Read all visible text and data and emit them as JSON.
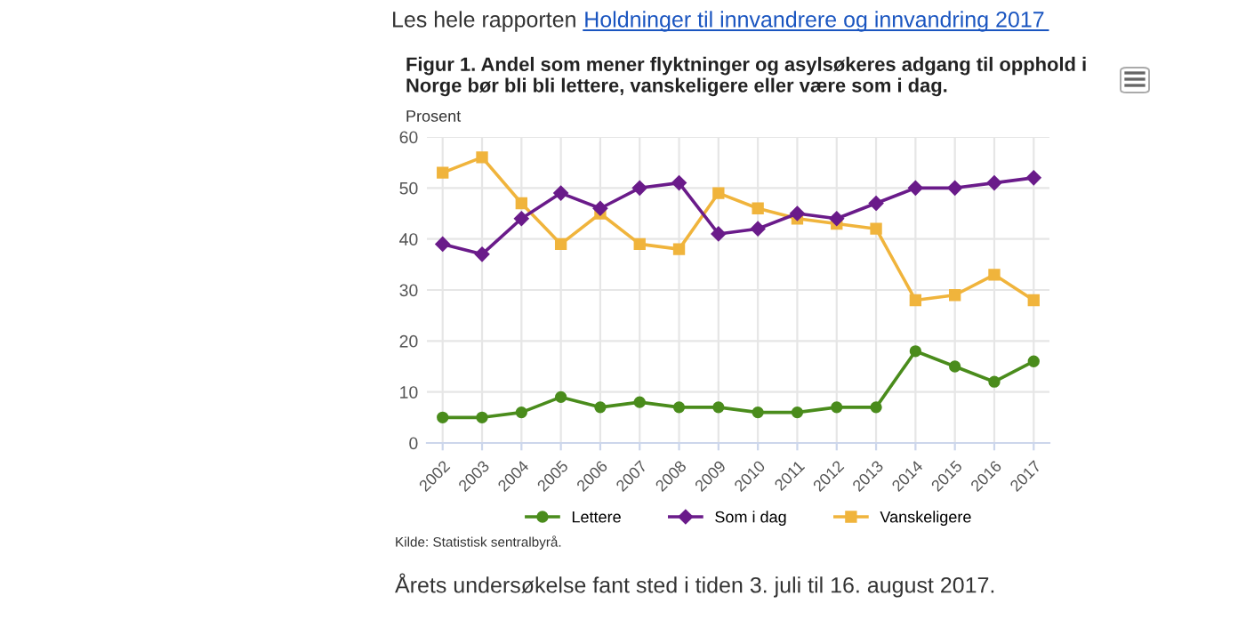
{
  "chart_data": {
    "type": "line",
    "title": "Figur 1. Andel som mener flyktninger og asylsøkeres adgang til opphold i\nNorge bør bli bli lettere, vanskeligere eller være som i dag.",
    "ylabel": "Prosent",
    "categories": [
      "2002",
      "2003",
      "2004",
      "2005",
      "2006",
      "2007",
      "2008",
      "2009",
      "2010",
      "2011",
      "2012",
      "2013",
      "2014",
      "2015",
      "2016",
      "2017"
    ],
    "series": [
      {
        "name": "Lettere",
        "color": "#4a8c1c",
        "marker": "circle",
        "values": [
          5,
          5,
          6,
          9,
          7,
          8,
          7,
          7,
          6,
          6,
          7,
          7,
          18,
          15,
          12,
          16
        ]
      },
      {
        "name": "Som i dag",
        "color": "#6a1b8a",
        "marker": "diamond",
        "values": [
          39,
          37,
          44,
          49,
          46,
          50,
          51,
          41,
          42,
          45,
          44,
          47,
          50,
          50,
          51,
          52
        ]
      },
      {
        "name": "Vanskeligere",
        "color": "#f0b43c",
        "marker": "square",
        "values": [
          53,
          56,
          47,
          39,
          45,
          39,
          38,
          49,
          46,
          44,
          43,
          42,
          28,
          29,
          33,
          28
        ]
      }
    ],
    "ylim": [
      0,
      60
    ],
    "yticks": [
      0,
      10,
      20,
      30,
      40,
      50,
      60
    ],
    "grid": true,
    "legend": "bottom",
    "line_style": "solid",
    "annotations": [
      "Les hele rapporten",
      "Holdninger til innvandrere og innvandring 2017",
      "Kilde: Statistisk sentralbyrå.",
      "Årets undersøkelse fant sted i tiden 3. juli til 16. august 2017."
    ]
  }
}
